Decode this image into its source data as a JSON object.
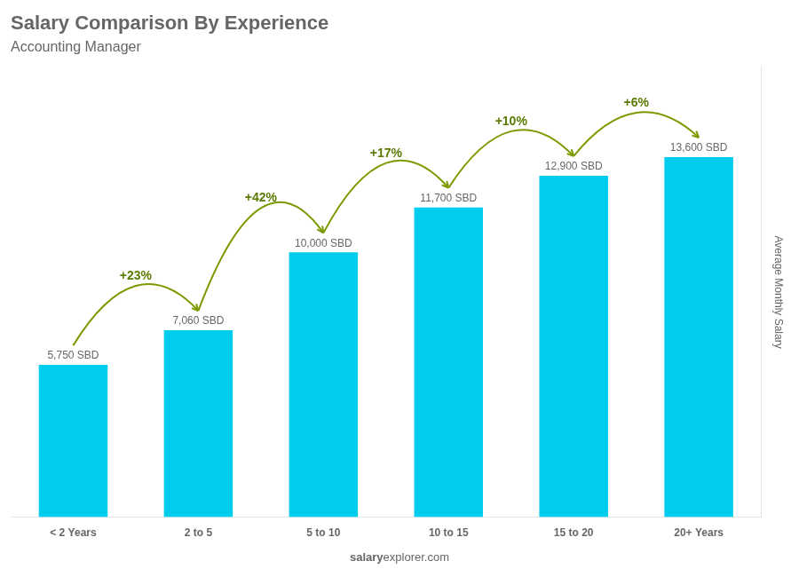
{
  "chart_data": {
    "type": "bar",
    "title": "Salary Comparison By Experience",
    "subtitle": "Accounting Manager",
    "categories": [
      "< 2 Years",
      "2 to 5",
      "5 to 10",
      "10 to 15",
      "15 to 20",
      "20+ Years"
    ],
    "values": [
      5750,
      7060,
      10000,
      11700,
      12900,
      13600
    ],
    "value_labels": [
      "5,750 SBD",
      "7,060 SBD",
      "10,000 SBD",
      "11,700 SBD",
      "12,900 SBD",
      "13,600 SBD"
    ],
    "data_labels": true,
    "color": "#00ccee",
    "ylabel": "Average Monthly Salary",
    "ylim": [
      0,
      17000
    ],
    "grid": false,
    "tick_labels": "x",
    "annotations": [
      "+23%",
      "+42%",
      "+17%",
      "+10%",
      "+6%"
    ],
    "footer": [
      "salary",
      "explorer.com"
    ]
  }
}
